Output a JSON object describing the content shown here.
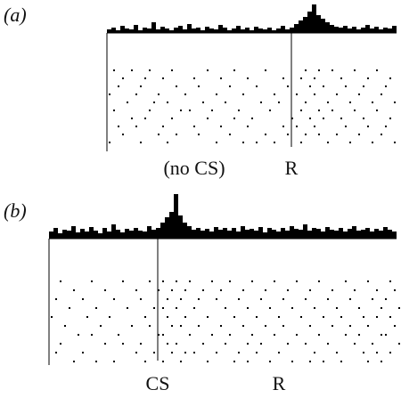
{
  "panels": [
    {
      "label": "(a)",
      "events": [
        "(no CS)",
        "R"
      ],
      "histogram": [
        4,
        6,
        3,
        8,
        5,
        4,
        9,
        3,
        6,
        5,
        12,
        4,
        7,
        5,
        3,
        6,
        8,
        4,
        10,
        5,
        6,
        3,
        7,
        5,
        4,
        9,
        6,
        3,
        5,
        8,
        4,
        6,
        3,
        7,
        5,
        4,
        6,
        3,
        5,
        8,
        4,
        6,
        10,
        14,
        18,
        24,
        32,
        20,
        16,
        12,
        9,
        7,
        6,
        8,
        5,
        7,
        4,
        6,
        9,
        5,
        7,
        4,
        6,
        5,
        8
      ],
      "raster": [
        [
          1,
          5,
          9,
          14,
          22,
          28,
          35,
          44,
          47,
          50,
          55,
          60
        ],
        [
          3,
          8,
          12,
          19,
          25,
          31,
          39,
          43,
          46,
          52,
          58,
          63
        ],
        [
          2,
          7,
          15,
          20,
          27,
          33,
          40,
          45,
          48,
          53,
          57,
          62
        ],
        [
          0,
          6,
          11,
          17,
          24,
          30,
          37,
          42,
          46,
          51,
          56,
          61
        ],
        [
          4,
          10,
          13,
          21,
          26,
          34,
          38,
          44,
          49,
          54,
          59,
          64
        ],
        [
          1,
          9,
          16,
          18,
          23,
          29,
          36,
          43,
          47,
          50,
          55,
          60
        ],
        [
          5,
          8,
          14,
          22,
          28,
          32,
          41,
          45,
          48,
          52,
          57,
          63
        ],
        [
          2,
          6,
          12,
          19,
          25,
          31,
          39,
          42,
          46,
          53,
          58,
          62
        ],
        [
          3,
          11,
          15,
          20,
          27,
          35,
          40,
          44,
          47,
          51,
          56,
          61
        ],
        [
          0,
          7,
          13,
          24,
          30,
          33,
          37,
          43,
          49,
          54,
          59,
          64
        ]
      ]
    },
    {
      "label": "(b)",
      "events": [
        "CS",
        "R"
      ],
      "histogram": [
        8,
        12,
        6,
        10,
        9,
        14,
        7,
        11,
        8,
        13,
        9,
        6,
        12,
        8,
        16,
        10,
        7,
        11,
        9,
        12,
        9,
        8,
        14,
        10,
        12,
        18,
        24,
        30,
        50,
        26,
        18,
        14,
        10,
        12,
        9,
        11,
        8,
        13,
        10,
        12,
        9,
        12,
        8,
        14,
        10,
        11,
        9,
        13,
        7,
        12,
        10,
        8,
        12,
        9,
        14,
        11,
        10,
        16,
        9,
        12,
        11,
        8,
        13,
        10,
        9,
        12,
        8,
        11,
        14,
        9,
        10,
        12,
        8,
        11,
        9,
        13,
        10,
        8
      ],
      "raster": [
        [
          2,
          9,
          16,
          22,
          25,
          28,
          31,
          36,
          40,
          45,
          50,
          55,
          60,
          66,
          71,
          76
        ],
        [
          5,
          12,
          19,
          24,
          27,
          30,
          34,
          38,
          43,
          48,
          53,
          58,
          63,
          68,
          73,
          77
        ],
        [
          1,
          7,
          14,
          20,
          26,
          29,
          33,
          37,
          42,
          47,
          52,
          57,
          62,
          67,
          72,
          75
        ],
        [
          4,
          10,
          17,
          23,
          25,
          28,
          32,
          39,
          44,
          49,
          54,
          59,
          64,
          69,
          74,
          78
        ],
        [
          0,
          8,
          13,
          21,
          26,
          30,
          35,
          41,
          46,
          51,
          56,
          61,
          65,
          70,
          73,
          76
        ],
        [
          3,
          11,
          18,
          22,
          27,
          29,
          33,
          38,
          43,
          48,
          52,
          58,
          63,
          67,
          71,
          77
        ],
        [
          6,
          9,
          15,
          24,
          25,
          31,
          36,
          40,
          45,
          50,
          55,
          60,
          66,
          69,
          74,
          75
        ],
        [
          2,
          12,
          16,
          20,
          26,
          28,
          34,
          39,
          44,
          47,
          53,
          57,
          62,
          68,
          72,
          78
        ],
        [
          1,
          7,
          19,
          23,
          27,
          30,
          32,
          37,
          42,
          46,
          51,
          59,
          64,
          70,
          73,
          76
        ],
        [
          5,
          10,
          14,
          21,
          25,
          29,
          35,
          41,
          44,
          49,
          54,
          58,
          61,
          65,
          71,
          74
        ]
      ]
    }
  ]
}
